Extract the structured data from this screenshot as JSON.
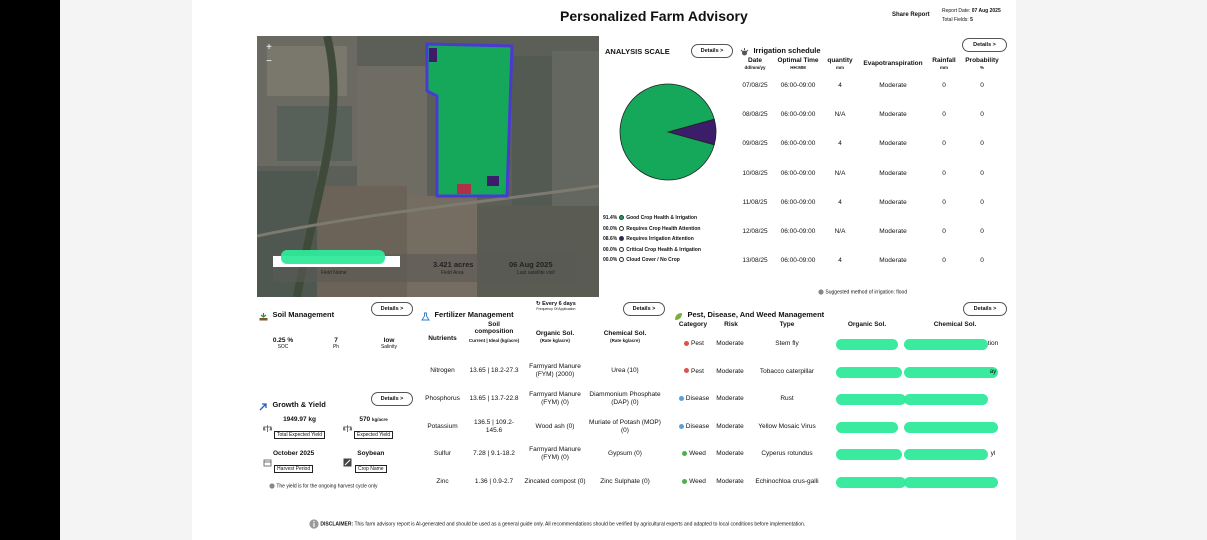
{
  "header": {
    "title": "Personalized Farm Advisory",
    "share_label": "Share Report",
    "report_date_label": "Report Date:",
    "report_date": "07 Aug 2025",
    "total_fields_label": "Total Fields:",
    "total_fields": "5"
  },
  "map": {
    "field_area": "3.421 acres",
    "field_area_label": "Field Area",
    "field_name_label": "Field Name",
    "satellite_date": "06 Aug 2025",
    "satellite_label": "Last satellite visit",
    "zoom_in": "+",
    "zoom_out": "−"
  },
  "analysis": {
    "title": "ANALYSIS SCALE",
    "details_label": "Details >",
    "legend": [
      {
        "pct": "91.4%",
        "label": "Good Crop Health & Irrigation",
        "color": "#16a85a"
      },
      {
        "pct": "00.0%",
        "label": "Requires Crop Health Attention",
        "color": "#ffffff"
      },
      {
        "pct": "08.6%",
        "label": "Requires Irrigation Attention",
        "color": "#3b1d6a"
      },
      {
        "pct": "00.0%",
        "label": "Critical Crop Health & Irrigation",
        "color": "#ffffff"
      },
      {
        "pct": "00.0%",
        "label": "Cloud Cover / No Crop",
        "color": "#ffffff"
      }
    ],
    "slices": [
      {
        "label": "Good Crop Health & Irrigation",
        "value": 91.4,
        "color": "#16a85a"
      },
      {
        "label": "Requires Irrigation Attention",
        "value": 8.6,
        "color": "#3b1d6a"
      }
    ]
  },
  "irrigation": {
    "title": "Irrigation schedule",
    "details_label": "Details >",
    "headers": {
      "date": "Date",
      "date_sub": "dd/mm/yy",
      "time": "Optimal Time",
      "time_sub": "HH:MM",
      "qty": "quantity",
      "qty_sub": "mm",
      "evap": "Evapotranspiration",
      "rain": "Rainfall",
      "rain_sub": "mm",
      "prob": "Probability",
      "prob_sub": "%"
    },
    "rows": [
      {
        "date": "07/08/25",
        "time": "06:00-09:00",
        "qty": "4",
        "evap": "Moderate",
        "rain": "0",
        "prob": "0"
      },
      {
        "date": "08/08/25",
        "time": "06:00-09:00",
        "qty": "N/A",
        "evap": "Moderate",
        "rain": "0",
        "prob": "0"
      },
      {
        "date": "09/08/25",
        "time": "06:00-09:00",
        "qty": "4",
        "evap": "Moderate",
        "rain": "0",
        "prob": "0"
      },
      {
        "date": "10/08/25",
        "time": "06:00-09:00",
        "qty": "N/A",
        "evap": "Moderate",
        "rain": "0",
        "prob": "0"
      },
      {
        "date": "11/08/25",
        "time": "06:00-09:00",
        "qty": "4",
        "evap": "Moderate",
        "rain": "0",
        "prob": "0"
      },
      {
        "date": "12/08/25",
        "time": "06:00-09:00",
        "qty": "N/A",
        "evap": "Moderate",
        "rain": "0",
        "prob": "0"
      },
      {
        "date": "13/08/25",
        "time": "06:00-09:00",
        "qty": "4",
        "evap": "Moderate",
        "rain": "0",
        "prob": "0"
      }
    ],
    "note": "Suggested method of irrigation: flood"
  },
  "soil": {
    "title": "Soil Management",
    "details_label": "Details >",
    "items": [
      {
        "value": "0.25 %",
        "label": "SOC"
      },
      {
        "value": "7",
        "label": "Ph"
      },
      {
        "value": "low",
        "label": "Salinity"
      }
    ]
  },
  "growth": {
    "title": "Growth & Yield",
    "details_label": "Details >",
    "total_yield": "1949.97 kg",
    "total_yield_label": "Total Expected Yield",
    "expected_yield": "570",
    "expected_yield_unit": "kg/acre",
    "expected_yield_label": "Expected Yield",
    "harvest": "October 2025",
    "harvest_label": "Harvest Period",
    "crop": "Soybean",
    "crop_label": "Crop Name",
    "note": "The yield is for the ongoing harvest cycle only"
  },
  "fertilizer": {
    "title": "Fertilizer Management",
    "frequency": "Every 6 days",
    "frequency_label": "Frequency Of Application",
    "details_label": "Details >",
    "headers": {
      "nutrients": "Nutrients",
      "soil": "Soil composition",
      "soil_sub": "Current | Ideal (kg/acre)",
      "organic": "Organic Sol.",
      "organic_sub": "(Rate kg/acre)",
      "chemical": "Chemical Sol.",
      "chemical_sub": "(Rate kg/acre)"
    },
    "rows": [
      {
        "nutrient": "Nitrogen",
        "soil": "13.65 | 18.2-27.3",
        "organic": "Farmyard Manure (FYM) (2000)",
        "chemical": "Urea (10)"
      },
      {
        "nutrient": "Phosphorus",
        "soil": "13.65 | 13.7-22.8",
        "organic": "Farmyard Manure (FYM) (0)",
        "chemical": "Diammonium Phosphate (DAP) (0)"
      },
      {
        "nutrient": "Potassium",
        "soil": "136.5 | 109.2-145.6",
        "organic": "Wood ash (0)",
        "chemical": "Muriate of Potash (MOP) (0)"
      },
      {
        "nutrient": "Sulfur",
        "soil": "7.28 | 9.1-18.2",
        "organic": "Farmyard Manure (FYM) (0)",
        "chemical": "Gypsum (0)"
      },
      {
        "nutrient": "Zinc",
        "soil": "1.36 | 0.9-2.7",
        "organic": "Zincated compost (0)",
        "chemical": "Zinc Sulphate (0)"
      }
    ]
  },
  "pest": {
    "title": "Pest, Disease, And Weed Management",
    "details_label": "Details >",
    "headers": {
      "category": "Category",
      "risk": "Risk",
      "type": "Type",
      "organic": "Organic Sol.",
      "chemical": "Chemical Sol."
    },
    "rows": [
      {
        "category": "Pest",
        "risk": "Moderate",
        "type": "Stem fly",
        "chem_tail": "tion"
      },
      {
        "category": "Pest",
        "risk": "Moderate",
        "type": "Tobacco caterpillar",
        "chem_tail": "ay"
      },
      {
        "category": "Disease",
        "risk": "Moderate",
        "type": "Rust",
        "chem_tail": ""
      },
      {
        "category": "Disease",
        "risk": "Moderate",
        "type": "Yellow Mosaic Virus",
        "chem_tail": ""
      },
      {
        "category": "Weed",
        "risk": "Moderate",
        "type": "Cyperus rotundus",
        "chem_tail": "yl"
      },
      {
        "category": "Weed",
        "risk": "Moderate",
        "type": "Echinochloa crus-galli",
        "chem_tail": ""
      }
    ]
  },
  "disclaimer": {
    "label": "DISCLAIMER:",
    "text": "This farm advisory report is AI-generated and should be used as a general guide only. All recommendations should be verified by agricultural experts and adapted to local conditions before implementation."
  }
}
